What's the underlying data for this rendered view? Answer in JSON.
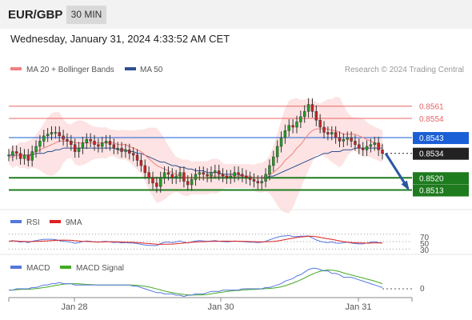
{
  "header": {
    "pair": "EUR/GBP",
    "timeframe": "30 MIN",
    "datetime": "Wednesday, January 31, 2024 4:33:52 AM CET"
  },
  "legend": {
    "ma20": "MA 20 + Bollinger Bands",
    "ma50": "MA 50",
    "credit": "Research © 2024 Trading Central"
  },
  "colors": {
    "resistance": "#e86464",
    "support": "#1e7b1e",
    "pivot": "#1a5fd6",
    "price": "#222222",
    "ma50": "#2f4f8f",
    "ma20": "#f08080",
    "band": "#fde3e3",
    "up": "#22a022",
    "down": "#cc2222",
    "arrow": "#2a57a0",
    "rsi": "#5577dd",
    "rsi_ma": "#dd2222",
    "macd": "#5577dd",
    "macd_signal": "#44aa22"
  },
  "chart_data": [
    {
      "type": "candlestick",
      "x_labels": [
        "Jan 28",
        "Jan 30",
        "Jan 31"
      ],
      "ylim": [
        0.8505,
        0.8576
      ],
      "levels": [
        {
          "label": "0.8561",
          "value": 0.8561,
          "kind": "resistance"
        },
        {
          "label": "0.8554",
          "value": 0.8554,
          "kind": "resistance"
        },
        {
          "label": "0.8543",
          "value": 0.8543,
          "kind": "pivot"
        },
        {
          "label": "0.8534",
          "value": 0.8534,
          "kind": "price"
        },
        {
          "label": "0.8520",
          "value": 0.852,
          "kind": "support"
        },
        {
          "label": "0.8513",
          "value": 0.8513,
          "kind": "support"
        }
      ],
      "close_series": [
        0.8533,
        0.8535,
        0.8534,
        0.8531,
        0.8533,
        0.853,
        0.8535,
        0.8538,
        0.8541,
        0.8544,
        0.8545,
        0.8546,
        0.8546,
        0.8544,
        0.8542,
        0.8541,
        0.8539,
        0.8535,
        0.8537,
        0.854,
        0.8542,
        0.8541,
        0.8539,
        0.8538,
        0.854,
        0.8541,
        0.8539,
        0.8537,
        0.8537,
        0.8535,
        0.8536,
        0.8534,
        0.8533,
        0.853,
        0.8527,
        0.8523,
        0.852,
        0.8517,
        0.8515,
        0.852,
        0.8523,
        0.8522,
        0.852,
        0.8521,
        0.8523,
        0.8518,
        0.8516,
        0.8519,
        0.8522,
        0.8523,
        0.8522,
        0.8521,
        0.8523,
        0.8524,
        0.8522,
        0.8521,
        0.852,
        0.8521,
        0.8523,
        0.8522,
        0.8521,
        0.852,
        0.8519,
        0.8518,
        0.8517,
        0.8518,
        0.8522,
        0.8527,
        0.8532,
        0.8538,
        0.8543,
        0.8547,
        0.855,
        0.8549,
        0.8552,
        0.8555,
        0.8558,
        0.8562,
        0.8558,
        0.8553,
        0.8549,
        0.8546,
        0.8545,
        0.8546,
        0.8543,
        0.8541,
        0.8542,
        0.8543,
        0.8541,
        0.8539,
        0.8537,
        0.8536,
        0.8538,
        0.8539,
        0.854,
        0.8536,
        0.8534
      ],
      "ma20_series": [
        0.8532,
        0.8532,
        0.8533,
        0.8533,
        0.8533,
        0.8533,
        0.8534,
        0.8535,
        0.8536,
        0.8537,
        0.8538,
        0.8539,
        0.854,
        0.8541,
        0.8541,
        0.8541,
        0.8541,
        0.854,
        0.854,
        0.854,
        0.854,
        0.854,
        0.854,
        0.854,
        0.854,
        0.854,
        0.854,
        0.854,
        0.8539,
        0.8539,
        0.8539,
        0.8538,
        0.8537,
        0.8536,
        0.8535,
        0.8533,
        0.8531,
        0.8529,
        0.8527,
        0.8526,
        0.8525,
        0.8524,
        0.8523,
        0.8522,
        0.8521,
        0.852,
        0.852,
        0.852,
        0.852,
        0.852,
        0.852,
        0.852,
        0.8521,
        0.8521,
        0.8521,
        0.8521,
        0.8521,
        0.8521,
        0.8521,
        0.8521,
        0.8521,
        0.8521,
        0.8521,
        0.852,
        0.852,
        0.852,
        0.8521,
        0.8522,
        0.8523,
        0.8525,
        0.8527,
        0.853,
        0.8532,
        0.8534,
        0.8537,
        0.8539,
        0.8542,
        0.8545,
        0.8547,
        0.8548,
        0.8548,
        0.8548,
        0.8548,
        0.8547,
        0.8547,
        0.8546,
        0.8545,
        0.8545,
        0.8545,
        0.8545,
        0.8544,
        0.8543,
        0.8542,
        0.8541,
        0.854,
        0.8539,
        0.8538
      ],
      "ma50_series": [
        0.8533,
        0.8533,
        0.8533,
        0.8533,
        0.8533,
        0.8533,
        0.8533,
        0.8534,
        0.8534,
        0.8534,
        0.8535,
        0.8535,
        0.8536,
        0.8536,
        0.8537,
        0.8537,
        0.8537,
        0.8537,
        0.8537,
        0.8537,
        0.8537,
        0.8537,
        0.8537,
        0.8537,
        0.8537,
        0.8537,
        0.8537,
        0.8537,
        0.8536,
        0.8536,
        0.8536,
        0.8535,
        0.8535,
        0.8534,
        0.8534,
        0.8533,
        0.8532,
        0.8531,
        0.853,
        0.8529,
        0.8529,
        0.8528,
        0.8527,
        0.8527,
        0.8526,
        0.8526,
        0.8525,
        0.8525,
        0.8524,
        0.8524,
        0.8524,
        0.8523,
        0.8523,
        0.8523,
        0.8523,
        0.8522,
        0.8522,
        0.8522,
        0.8522,
        0.8522,
        0.8521,
        0.8521,
        0.8521,
        0.852,
        0.852,
        0.852,
        0.852,
        0.8521,
        0.8521,
        0.8522,
        0.8523,
        0.8524,
        0.8525,
        0.8526,
        0.8527,
        0.8528,
        0.8529,
        0.853,
        0.8531,
        0.8532,
        0.8533,
        0.8534,
        0.8534,
        0.8535,
        0.8535,
        0.8535,
        0.8536,
        0.8536,
        0.8536,
        0.8537,
        0.8537,
        0.8537,
        0.8537,
        0.8537,
        0.8537,
        0.8537,
        0.8537
      ]
    },
    {
      "type": "line",
      "title": "RSI",
      "series": [
        {
          "name": "RSI"
        },
        {
          "name": "9MA"
        }
      ],
      "ticks": [
        "70",
        "50",
        "30"
      ],
      "ylim": [
        20,
        80
      ]
    },
    {
      "type": "line",
      "title": "MACD",
      "series": [
        {
          "name": "MACD"
        },
        {
          "name": "MACD Signal"
        }
      ],
      "ticks": [
        "0"
      ]
    }
  ]
}
